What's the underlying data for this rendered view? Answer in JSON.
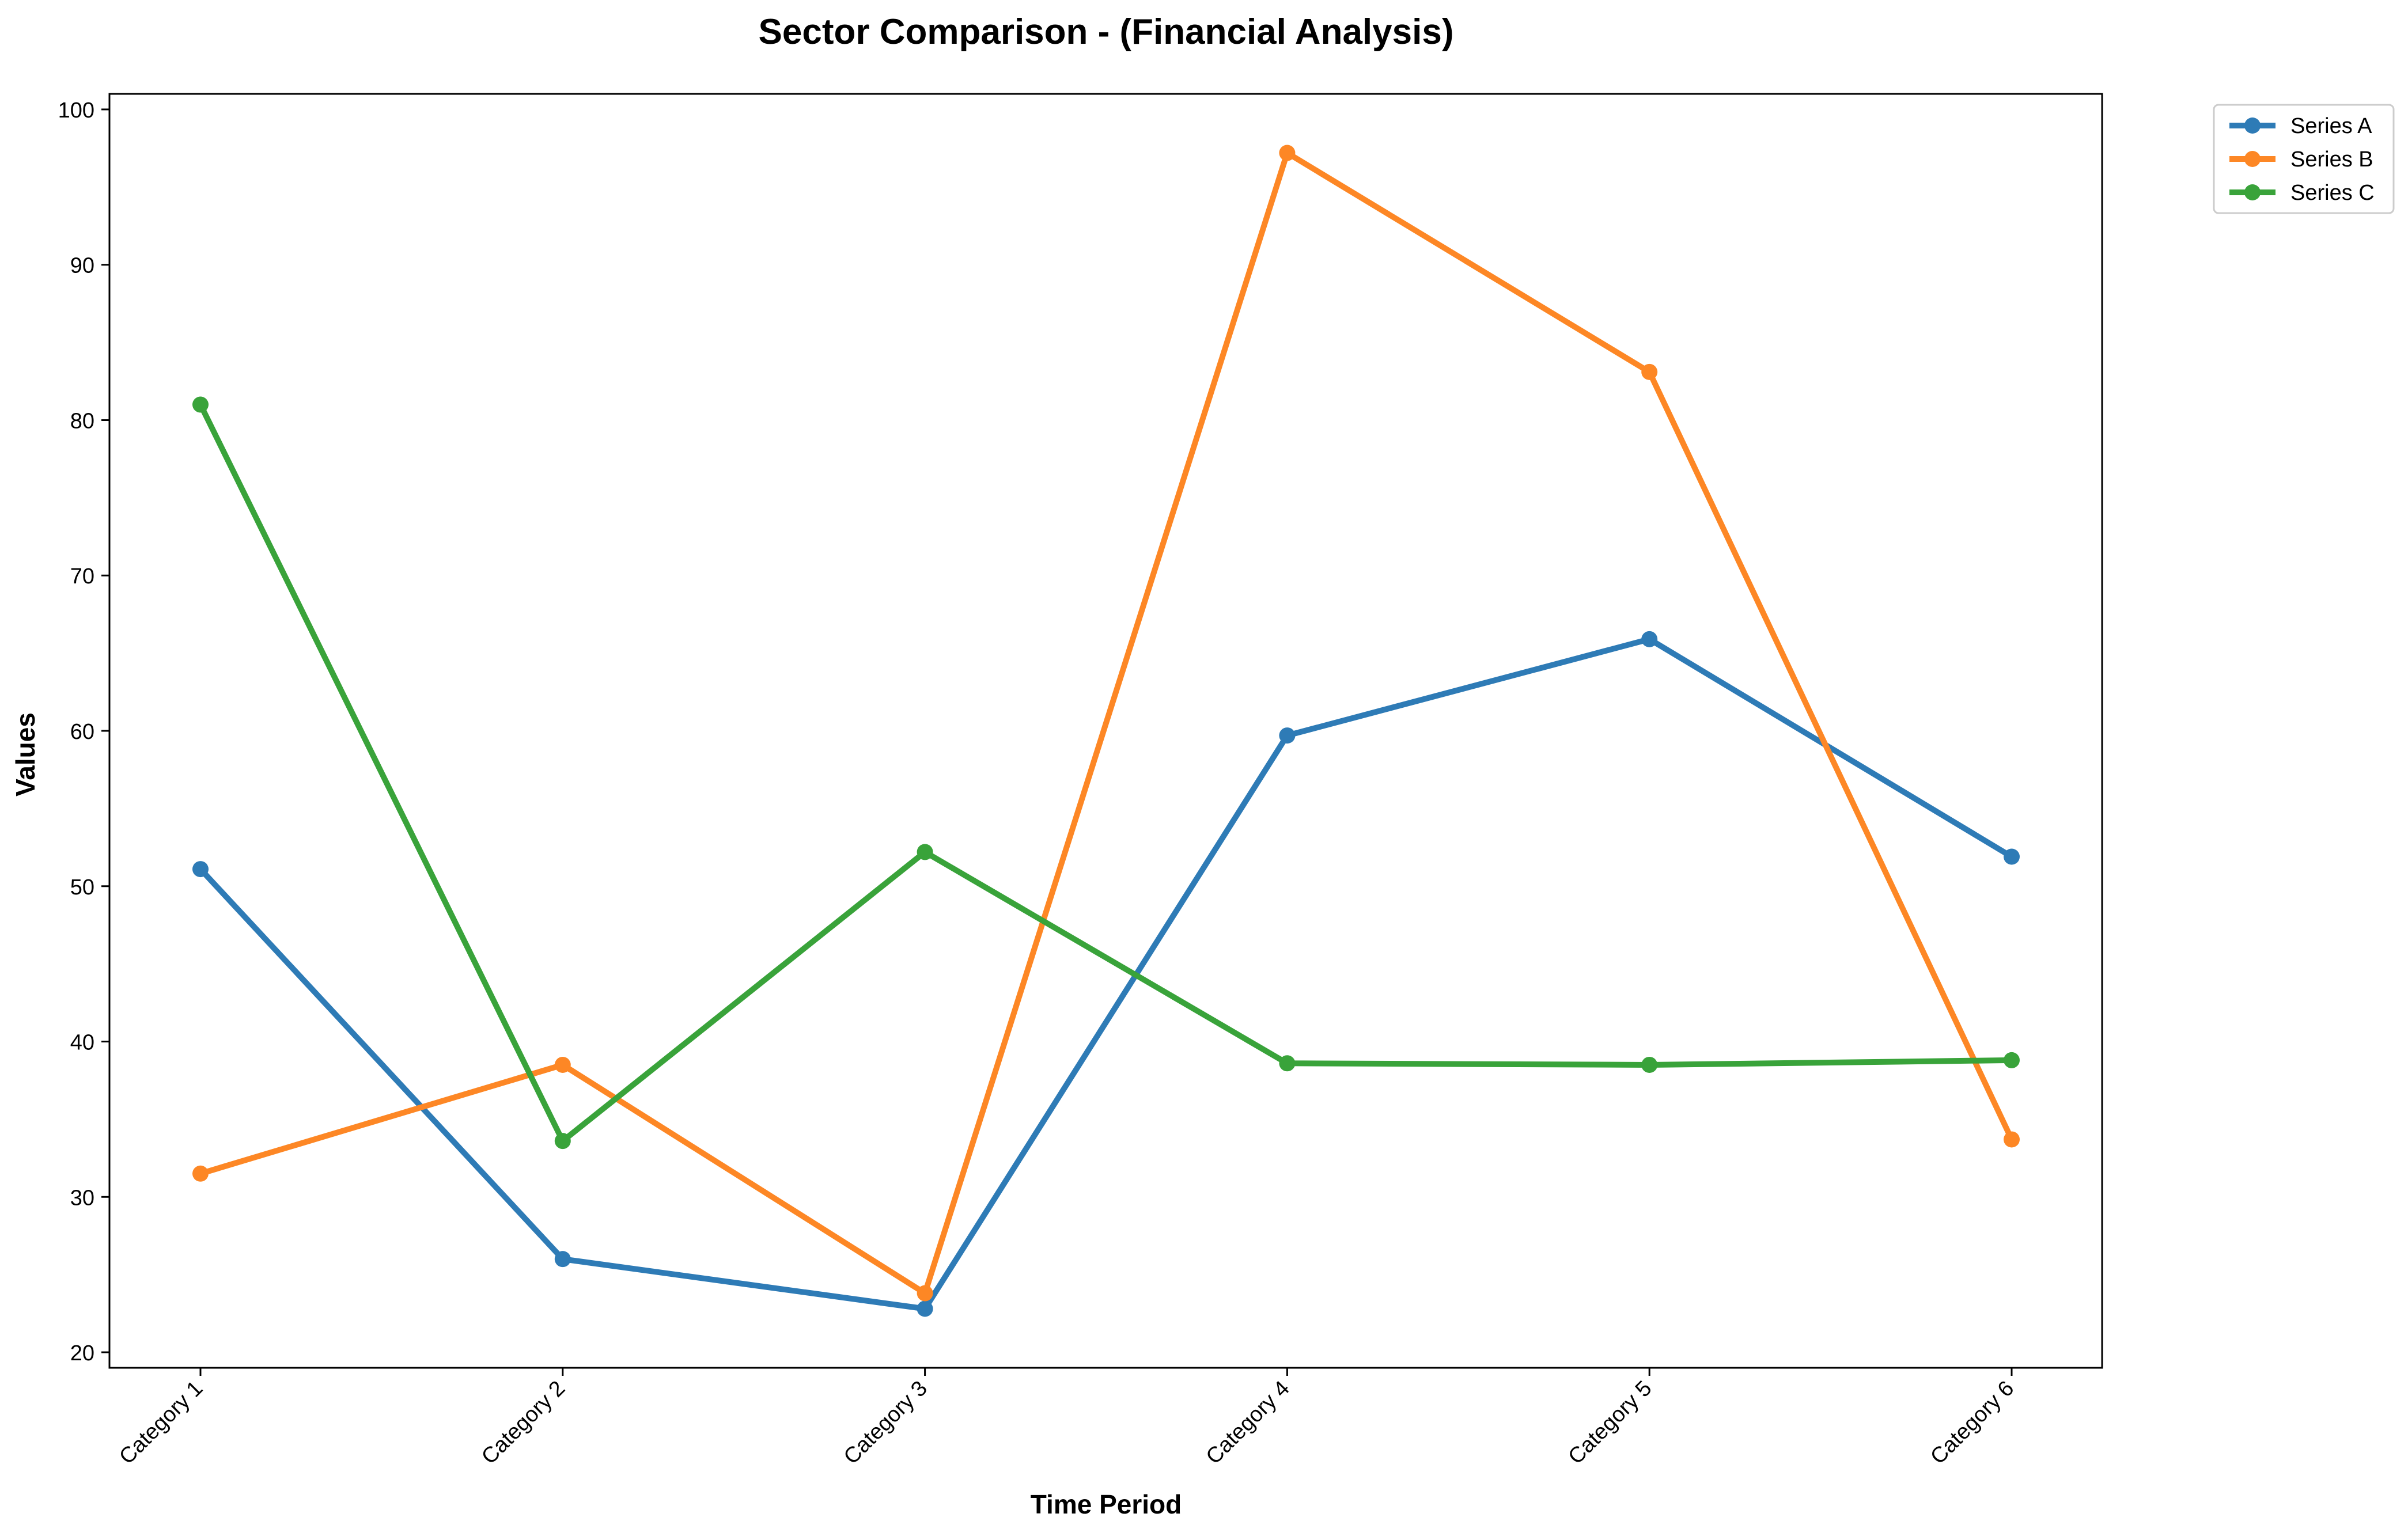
{
  "chart_data": {
    "type": "line",
    "title": "Sector Comparison - (Financial Analysis)",
    "xlabel": "Time Period",
    "ylabel": "Values",
    "categories": [
      "Category 1",
      "Category 2",
      "Category 3",
      "Category 4",
      "Category 5",
      "Category 6"
    ],
    "ylim": [
      19,
      101
    ],
    "yticks": [
      20,
      30,
      40,
      50,
      60,
      70,
      80,
      90,
      100
    ],
    "grid": false,
    "legend_position": "outside-top-right",
    "series": [
      {
        "name": "Series A",
        "color": "#2e7bb6",
        "values": [
          51.1,
          26.0,
          22.8,
          59.7,
          65.9,
          51.9
        ]
      },
      {
        "name": "Series B",
        "color": "#fd8725",
        "values": [
          31.5,
          38.5,
          23.8,
          97.2,
          83.1,
          33.7
        ]
      },
      {
        "name": "Series C",
        "color": "#39a33a",
        "values": [
          81.0,
          33.6,
          52.2,
          38.6,
          38.5,
          38.8
        ]
      }
    ]
  }
}
